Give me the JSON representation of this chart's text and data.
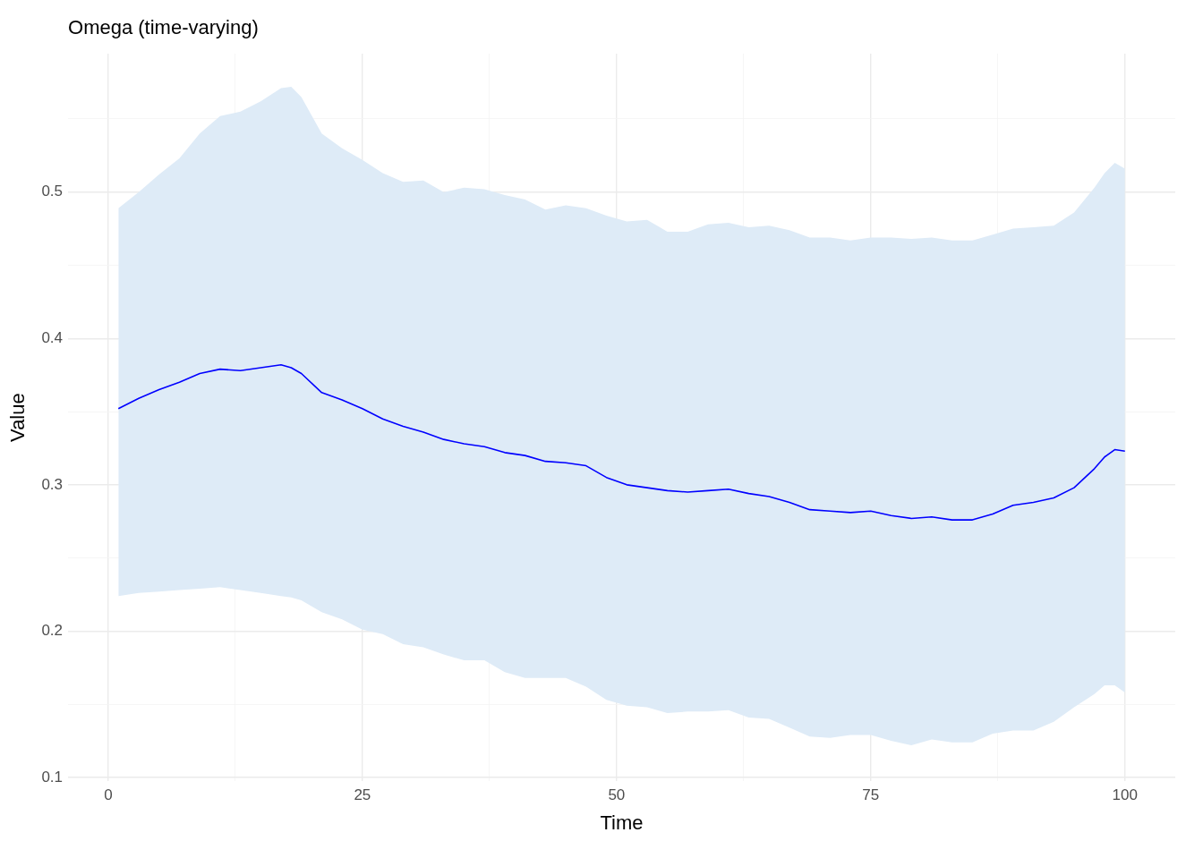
{
  "chart_data": {
    "type": "line",
    "title": "Omega (time-varying)",
    "xlabel": "Time",
    "ylabel": "Value",
    "xlim": [
      -3.95,
      104.95
    ],
    "xticks": [
      0,
      {
        "value": 12.5,
        "label": null
      },
      25,
      {
        "value": 37.5,
        "label": null
      },
      50,
      {
        "value": 62.5,
        "label": null
      },
      75,
      {
        "value": 87.5,
        "label": null
      },
      100
    ],
    "ylim": [
      0.0974,
      0.5946
    ],
    "yticks": [
      0.1,
      {
        "value": 0.15,
        "label": null
      },
      0.2,
      {
        "value": 0.25,
        "label": null
      },
      0.3,
      {
        "value": 0.35,
        "label": null
      },
      0.4,
      {
        "value": 0.45,
        "label": null
      },
      0.5,
      {
        "value": 0.55,
        "label": null
      }
    ],
    "grid": true,
    "marker": "none",
    "line_style": "solid",
    "series": [
      {
        "color": "#0000ff",
        "x": [
          1,
          3,
          5,
          7,
          9,
          11,
          13,
          15,
          17,
          18,
          19,
          21,
          23,
          25,
          27,
          29,
          31,
          33,
          35,
          37,
          39,
          41,
          43,
          45,
          47,
          49,
          51,
          53,
          55,
          57,
          59,
          61,
          63,
          65,
          67,
          69,
          71,
          73,
          75,
          77,
          79,
          81,
          83,
          85,
          87,
          89,
          91,
          93,
          95,
          97,
          98,
          99,
          100
        ],
        "values": [
          0.352,
          0.359,
          0.365,
          0.37,
          0.376,
          0.379,
          0.378,
          0.38,
          0.382,
          0.38,
          0.376,
          0.363,
          0.358,
          0.352,
          0.345,
          0.34,
          0.336,
          0.331,
          0.328,
          0.326,
          0.322,
          0.32,
          0.316,
          0.315,
          0.313,
          0.305,
          0.3,
          0.298,
          0.296,
          0.295,
          0.296,
          0.297,
          0.294,
          0.292,
          0.288,
          0.283,
          0.282,
          0.281,
          0.282,
          0.279,
          0.277,
          0.278,
          0.276,
          0.276,
          0.28,
          0.286,
          0.288,
          0.291,
          0.298,
          0.311,
          0.319,
          0.324,
          0.323
        ],
        "lower": [
          0.224,
          0.226,
          0.227,
          0.228,
          0.229,
          0.23,
          0.228,
          0.226,
          0.224,
          0.223,
          0.221,
          0.213,
          0.208,
          0.201,
          0.198,
          0.191,
          0.189,
          0.184,
          0.18,
          0.18,
          0.172,
          0.168,
          0.168,
          0.168,
          0.162,
          0.153,
          0.149,
          0.148,
          0.144,
          0.145,
          0.145,
          0.146,
          0.141,
          0.14,
          0.134,
          0.128,
          0.127,
          0.129,
          0.129,
          0.125,
          0.122,
          0.126,
          0.124,
          0.124,
          0.13,
          0.132,
          0.132,
          0.138,
          0.148,
          0.157,
          0.163,
          0.163,
          0.158
        ],
        "upper": [
          0.489,
          0.5,
          0.512,
          0.523,
          0.54,
          0.552,
          0.555,
          0.562,
          0.571,
          0.572,
          0.565,
          0.54,
          0.53,
          0.522,
          0.513,
          0.507,
          0.508,
          0.5,
          0.503,
          0.502,
          0.498,
          0.495,
          0.488,
          0.491,
          0.489,
          0.484,
          0.48,
          0.481,
          0.473,
          0.473,
          0.478,
          0.479,
          0.476,
          0.477,
          0.474,
          0.469,
          0.469,
          0.467,
          0.469,
          0.469,
          0.468,
          0.469,
          0.467,
          0.467,
          0.471,
          0.475,
          0.476,
          0.477,
          0.486,
          0.503,
          0.513,
          0.52,
          0.516
        ]
      }
    ]
  }
}
